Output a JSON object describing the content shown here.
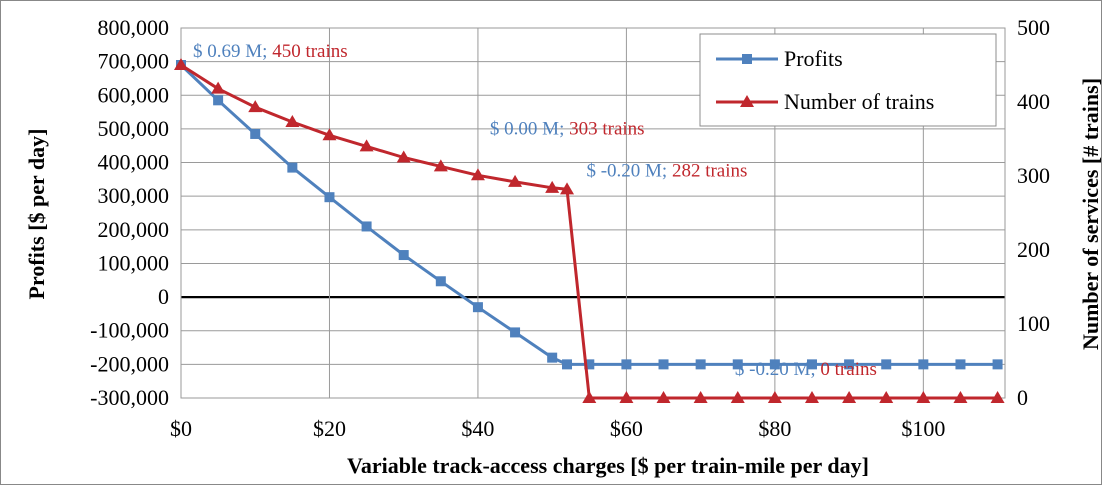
{
  "chart_data": {
    "type": "line",
    "title": "",
    "xlabel": "Variable track-access charges [$ per train-mile per day]",
    "ylabel": "Profits [$ per day]",
    "y2label": "Number of services [# trains]",
    "xlim": [
      0,
      111
    ],
    "ylim": [
      -300000,
      800000
    ],
    "y2lim": [
      0,
      500
    ],
    "grid": true,
    "legend": "top-right",
    "x_ticks": [
      0,
      20,
      40,
      60,
      80,
      100
    ],
    "x_tick_labels": [
      "$0",
      "$20",
      "$40",
      "$60",
      "$80",
      "$100"
    ],
    "y_ticks": [
      800000,
      700000,
      600000,
      500000,
      400000,
      300000,
      200000,
      100000,
      0,
      -100000,
      -200000,
      -300000
    ],
    "y_tick_labels": [
      "800,000",
      "700,000",
      "600,000",
      "500,000",
      "400,000",
      "300,000",
      "200,000",
      "100,000",
      "0",
      "-100,000",
      "-200,000",
      "-300,000"
    ],
    "y2_ticks": [
      500,
      400,
      300,
      200,
      100,
      0
    ],
    "y2_tick_labels": [
      "500",
      "400",
      "300",
      "200",
      "100",
      "0"
    ],
    "series": [
      {
        "name": "Profits",
        "axis": "left",
        "color": "#4f81bd",
        "marker": "square",
        "x": [
          0,
          5,
          10,
          15,
          20,
          25,
          30,
          35,
          40,
          45,
          50,
          52,
          55,
          60,
          65,
          70,
          75,
          80,
          85,
          90,
          95,
          100,
          105,
          110
        ],
        "y": [
          690000,
          585000,
          485000,
          385000,
          297000,
          210000,
          125000,
          47000,
          -30000,
          -105000,
          -180000,
          -200000,
          -200000,
          -200000,
          -200000,
          -200000,
          -200000,
          -200000,
          -200000,
          -200000,
          -200000,
          -200000,
          -200000,
          -200000
        ]
      },
      {
        "name": "Number of trains",
        "axis": "right",
        "color": "#c0272d",
        "marker": "triangle",
        "x": [
          0,
          5,
          10,
          15,
          20,
          25,
          30,
          35,
          40,
          45,
          50,
          52,
          55,
          60,
          65,
          70,
          75,
          80,
          85,
          90,
          95,
          100,
          105,
          110
        ],
        "y": [
          450,
          418,
          393,
          373,
          355,
          340,
          325,
          313,
          301,
          292,
          284,
          282,
          0,
          0,
          0,
          0,
          0,
          0,
          0,
          0,
          0,
          0,
          0,
          0
        ]
      }
    ],
    "annotations": [
      {
        "x": 0,
        "y": 690000,
        "profit_text": "$ 0.69 M",
        "sep": ";",
        "trains_text": "450 trains"
      },
      {
        "x": 40,
        "y": 460000,
        "profit_text": "$ 0.00 M",
        "sep": ";",
        "trains_text": "303 trains"
      },
      {
        "x": 53,
        "y": 335000,
        "profit_text": "$ -0.20 M",
        "sep": ";",
        "trains_text": "282 trains"
      },
      {
        "x": 73,
        "y": -255000,
        "profit_text": "$ -0.20 M",
        "sep": ";",
        "trains_text": "0 trains"
      }
    ]
  }
}
